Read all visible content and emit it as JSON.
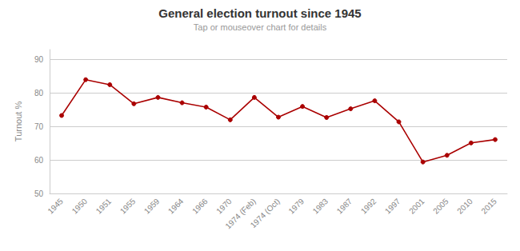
{
  "chart_data": {
    "type": "line",
    "title": "General election turnout since 1945",
    "subtitle": "Tap or mouseover chart for details",
    "ylabel": "Turnout %",
    "categories": [
      "1945",
      "1950",
      "1951",
      "1955",
      "1959",
      "1964",
      "1966",
      "1970",
      "1974 (Feb)",
      "1974 (Oct)",
      "1979",
      "1983",
      "1987",
      "1992",
      "1997",
      "2001",
      "2005",
      "2010",
      "2015"
    ],
    "values": [
      73.3,
      84.0,
      82.5,
      76.8,
      78.7,
      77.1,
      75.8,
      72.0,
      78.7,
      72.8,
      76.0,
      72.7,
      75.3,
      77.7,
      71.4,
      59.4,
      61.4,
      65.1,
      66.1
    ],
    "color": "#aa0000",
    "marker": "circle",
    "ylim": [
      50,
      93
    ],
    "yticks": [
      50,
      60,
      70,
      80,
      90
    ],
    "grid": true
  }
}
